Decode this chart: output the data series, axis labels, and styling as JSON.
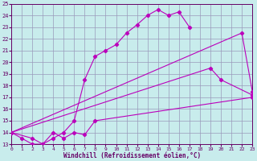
{
  "xlabel": "Windchill (Refroidissement éolien,°C)",
  "background_color": "#c8ecec",
  "grid_color": "#9999bb",
  "line_color": "#bb00bb",
  "xlim": [
    0,
    23
  ],
  "ylim": [
    13,
    25
  ],
  "xticks": [
    0,
    1,
    2,
    3,
    4,
    5,
    6,
    7,
    8,
    9,
    10,
    11,
    12,
    13,
    14,
    15,
    16,
    17,
    18,
    19,
    20,
    21,
    22,
    23
  ],
  "yticks": [
    13,
    14,
    15,
    16,
    17,
    18,
    19,
    20,
    21,
    22,
    23,
    24,
    25
  ],
  "line1_x": [
    0,
    1,
    2,
    3,
    4,
    5,
    6,
    7,
    8,
    9,
    10,
    11,
    12,
    13,
    14,
    15,
    16,
    17
  ],
  "line1_y": [
    14.0,
    13.5,
    13.0,
    13.0,
    13.5,
    14.0,
    15.0,
    18.5,
    20.5,
    21.0,
    21.5,
    22.5,
    23.2,
    24.0,
    24.5,
    24.0,
    24.3,
    23.0
  ],
  "line2_x": [
    0,
    2,
    3,
    4,
    5,
    6,
    7,
    8,
    23
  ],
  "line2_y": [
    14.0,
    13.5,
    13.0,
    14.0,
    13.5,
    14.0,
    13.8,
    15.0,
    17.0
  ],
  "line3_x": [
    0,
    19,
    20,
    23
  ],
  "line3_y": [
    14.0,
    19.5,
    18.5,
    17.2
  ],
  "line4_x": [
    0,
    22,
    23
  ],
  "line4_y": [
    14.0,
    22.5,
    17.5
  ],
  "xticklabel_fontsize": 4.5,
  "yticklabel_fontsize": 5.0,
  "xlabel_fontsize": 5.5
}
